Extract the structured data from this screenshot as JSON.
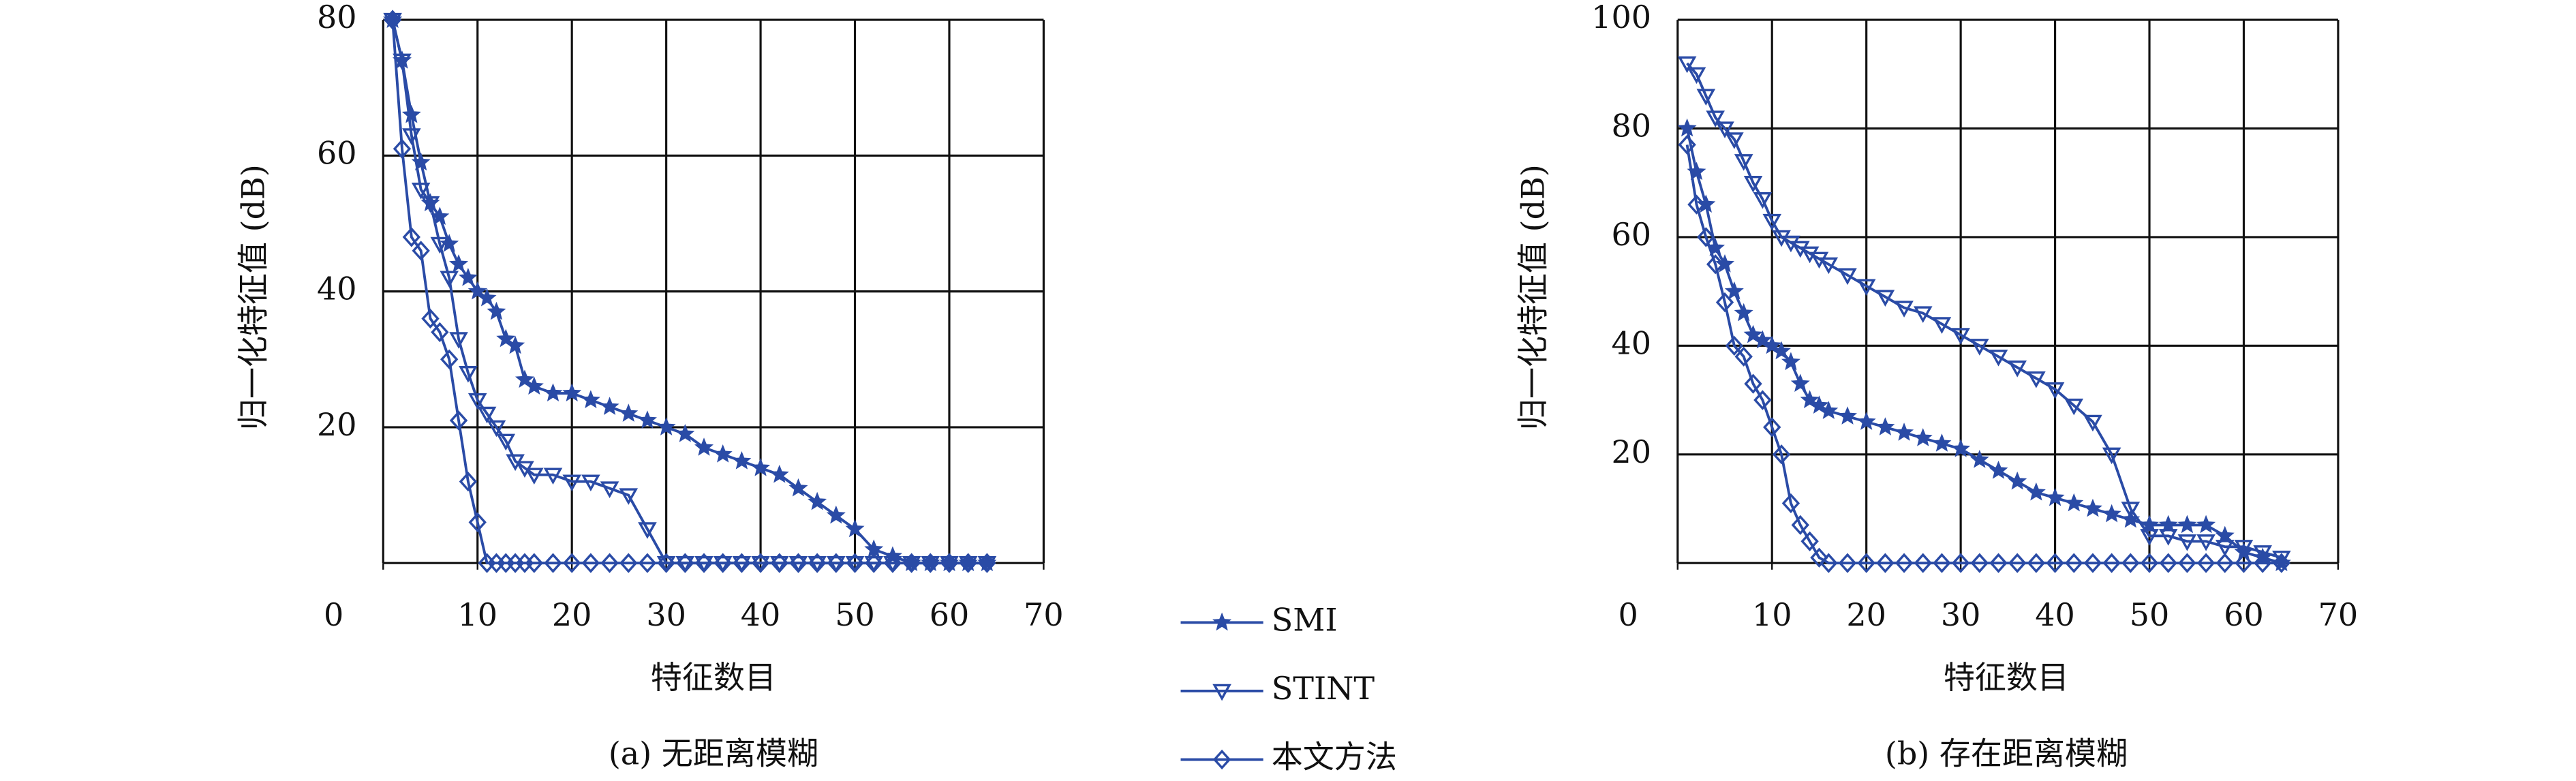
{
  "chart_data": [
    {
      "type": "line",
      "title": "(a) 无距离模糊",
      "x_label": "特征数目",
      "y_label": "归一化特征值 (dB)",
      "x": [
        1,
        2,
        3,
        4,
        5,
        6,
        7,
        8,
        9,
        10,
        11,
        12,
        13,
        14,
        15,
        16,
        18,
        20,
        22,
        24,
        26,
        28,
        30,
        32,
        34,
        36,
        38,
        40,
        42,
        44,
        46,
        48,
        50,
        52,
        54,
        56,
        58,
        60,
        62,
        64
      ],
      "xlim": [
        0,
        70
      ],
      "xticks": [
        0,
        10,
        20,
        30,
        40,
        50,
        60,
        70
      ],
      "ylim": [
        0,
        80
      ],
      "yticks": [
        20,
        40,
        60,
        80
      ],
      "grid": true,
      "series": [
        {
          "name": "SMI",
          "color": "#2a4ba6",
          "marker": "star",
          "values": [
            80,
            74,
            66,
            59,
            53,
            51,
            47,
            44,
            42,
            40,
            39,
            37,
            33,
            32,
            27,
            26,
            25,
            25,
            24,
            23,
            22,
            21,
            20,
            19,
            17,
            16,
            15,
            14,
            13,
            11,
            9,
            7,
            5,
            2,
            1,
            0,
            0,
            0,
            0,
            0
          ]
        },
        {
          "name": "STINT",
          "color": "#2a4ba6",
          "marker": "triangle-down",
          "values": [
            80,
            74,
            63,
            55,
            53,
            47,
            42,
            33,
            28,
            24,
            22,
            20,
            18,
            15,
            14,
            13,
            13,
            12,
            12,
            11,
            10,
            5,
            0,
            0,
            0,
            0,
            0,
            0,
            0,
            0,
            0,
            0,
            0,
            0,
            0,
            0,
            0,
            0,
            0,
            0
          ]
        },
        {
          "name": "本文方法",
          "color": "#2a4ba6",
          "marker": "diamond",
          "values": [
            80,
            61,
            48,
            46,
            36,
            34,
            30,
            21,
            12,
            6,
            0,
            0,
            0,
            0,
            0,
            0,
            0,
            0,
            0,
            0,
            0,
            0,
            0,
            0,
            0,
            0,
            0,
            0,
            0,
            0,
            0,
            0,
            0,
            0,
            0,
            0,
            0,
            0,
            0,
            0
          ]
        }
      ]
    },
    {
      "type": "line",
      "title": "(b) 存在距离模糊",
      "x_label": "特征数目",
      "y_label": "归一化特征值 (dB)",
      "x": [
        1,
        2,
        3,
        4,
        5,
        6,
        7,
        8,
        9,
        10,
        11,
        12,
        13,
        14,
        15,
        16,
        18,
        20,
        22,
        24,
        26,
        28,
        30,
        32,
        34,
        36,
        38,
        40,
        42,
        44,
        46,
        48,
        50,
        52,
        54,
        56,
        58,
        60,
        62,
        64
      ],
      "xlim": [
        0,
        70
      ],
      "xticks": [
        0,
        10,
        20,
        30,
        40,
        50,
        60,
        70
      ],
      "ylim": [
        0,
        100
      ],
      "yticks": [
        20,
        40,
        60,
        80,
        100
      ],
      "grid": true,
      "series": [
        {
          "name": "SMI",
          "color": "#2a4ba6",
          "marker": "star",
          "values": [
            80,
            72,
            66,
            58,
            55,
            50,
            46,
            42,
            41,
            40,
            39,
            37,
            33,
            30,
            29,
            28,
            27,
            26,
            25,
            24,
            23,
            22,
            21,
            19,
            17,
            15,
            13,
            12,
            11,
            10,
            9,
            8,
            7,
            7,
            7,
            7,
            5,
            2,
            1,
            0
          ]
        },
        {
          "name": "STINT",
          "color": "#2a4ba6",
          "marker": "triangle-down",
          "values": [
            92,
            90,
            86,
            82,
            80,
            78,
            74,
            70,
            67,
            63,
            60,
            59,
            58,
            57,
            56,
            55,
            53,
            51,
            49,
            47,
            46,
            44,
            42,
            40,
            38,
            36,
            34,
            32,
            29,
            26,
            20,
            10,
            5,
            5,
            4,
            4,
            3,
            3,
            2,
            1
          ]
        },
        {
          "name": "本文方法",
          "color": "#2a4ba6",
          "marker": "diamond",
          "values": [
            77,
            66,
            60,
            55,
            48,
            40,
            38,
            33,
            30,
            25,
            20,
            11,
            7,
            4,
            1,
            0,
            0,
            0,
            0,
            0,
            0,
            0,
            0,
            0,
            0,
            0,
            0,
            0,
            0,
            0,
            0,
            0,
            0,
            0,
            0,
            0,
            0,
            0,
            0,
            0
          ]
        }
      ]
    }
  ]
}
